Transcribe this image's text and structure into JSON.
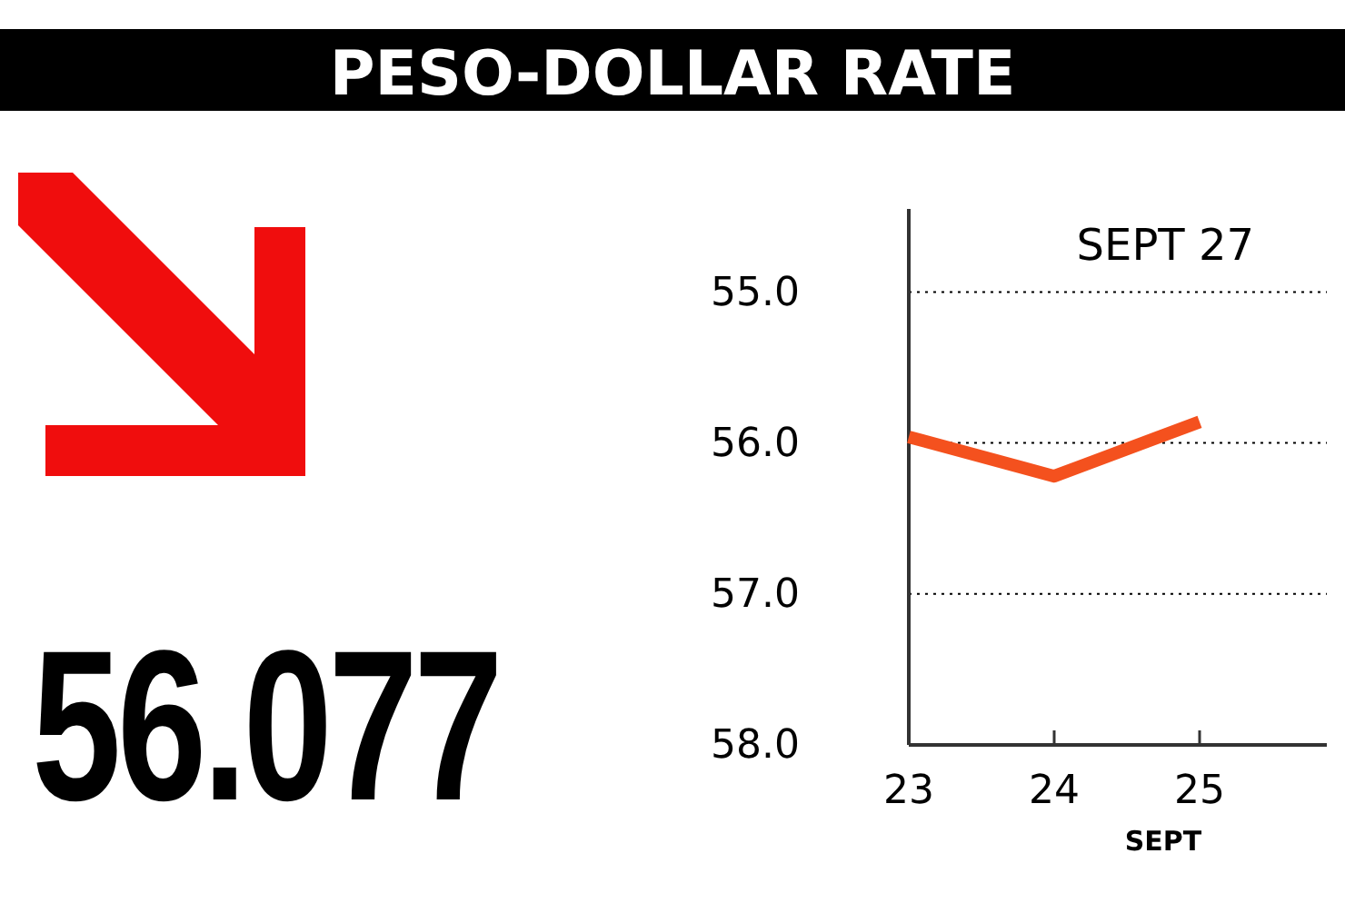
{
  "chart_data": {
    "type": "line",
    "title": "PESO-DOLLAR RATE",
    "xlabel": "SEPT",
    "categories": [
      "23",
      "24",
      "25"
    ],
    "series": [
      {
        "color": "#f4511e",
        "values": [
          55.96,
          56.22,
          55.86
        ]
      }
    ],
    "ylim": [
      58,
      54.45
    ],
    "yticks": [
      {
        "value": 55,
        "label": "55.0"
      },
      {
        "value": 56,
        "label": "56.0"
      },
      {
        "value": 57,
        "label": "57.0"
      },
      {
        "value": 58,
        "label": "58.0"
      }
    ],
    "grid": "y",
    "marker": "none",
    "line_style": "solid",
    "annotations": [
      "SEPT 27",
      "56.077"
    ]
  }
}
